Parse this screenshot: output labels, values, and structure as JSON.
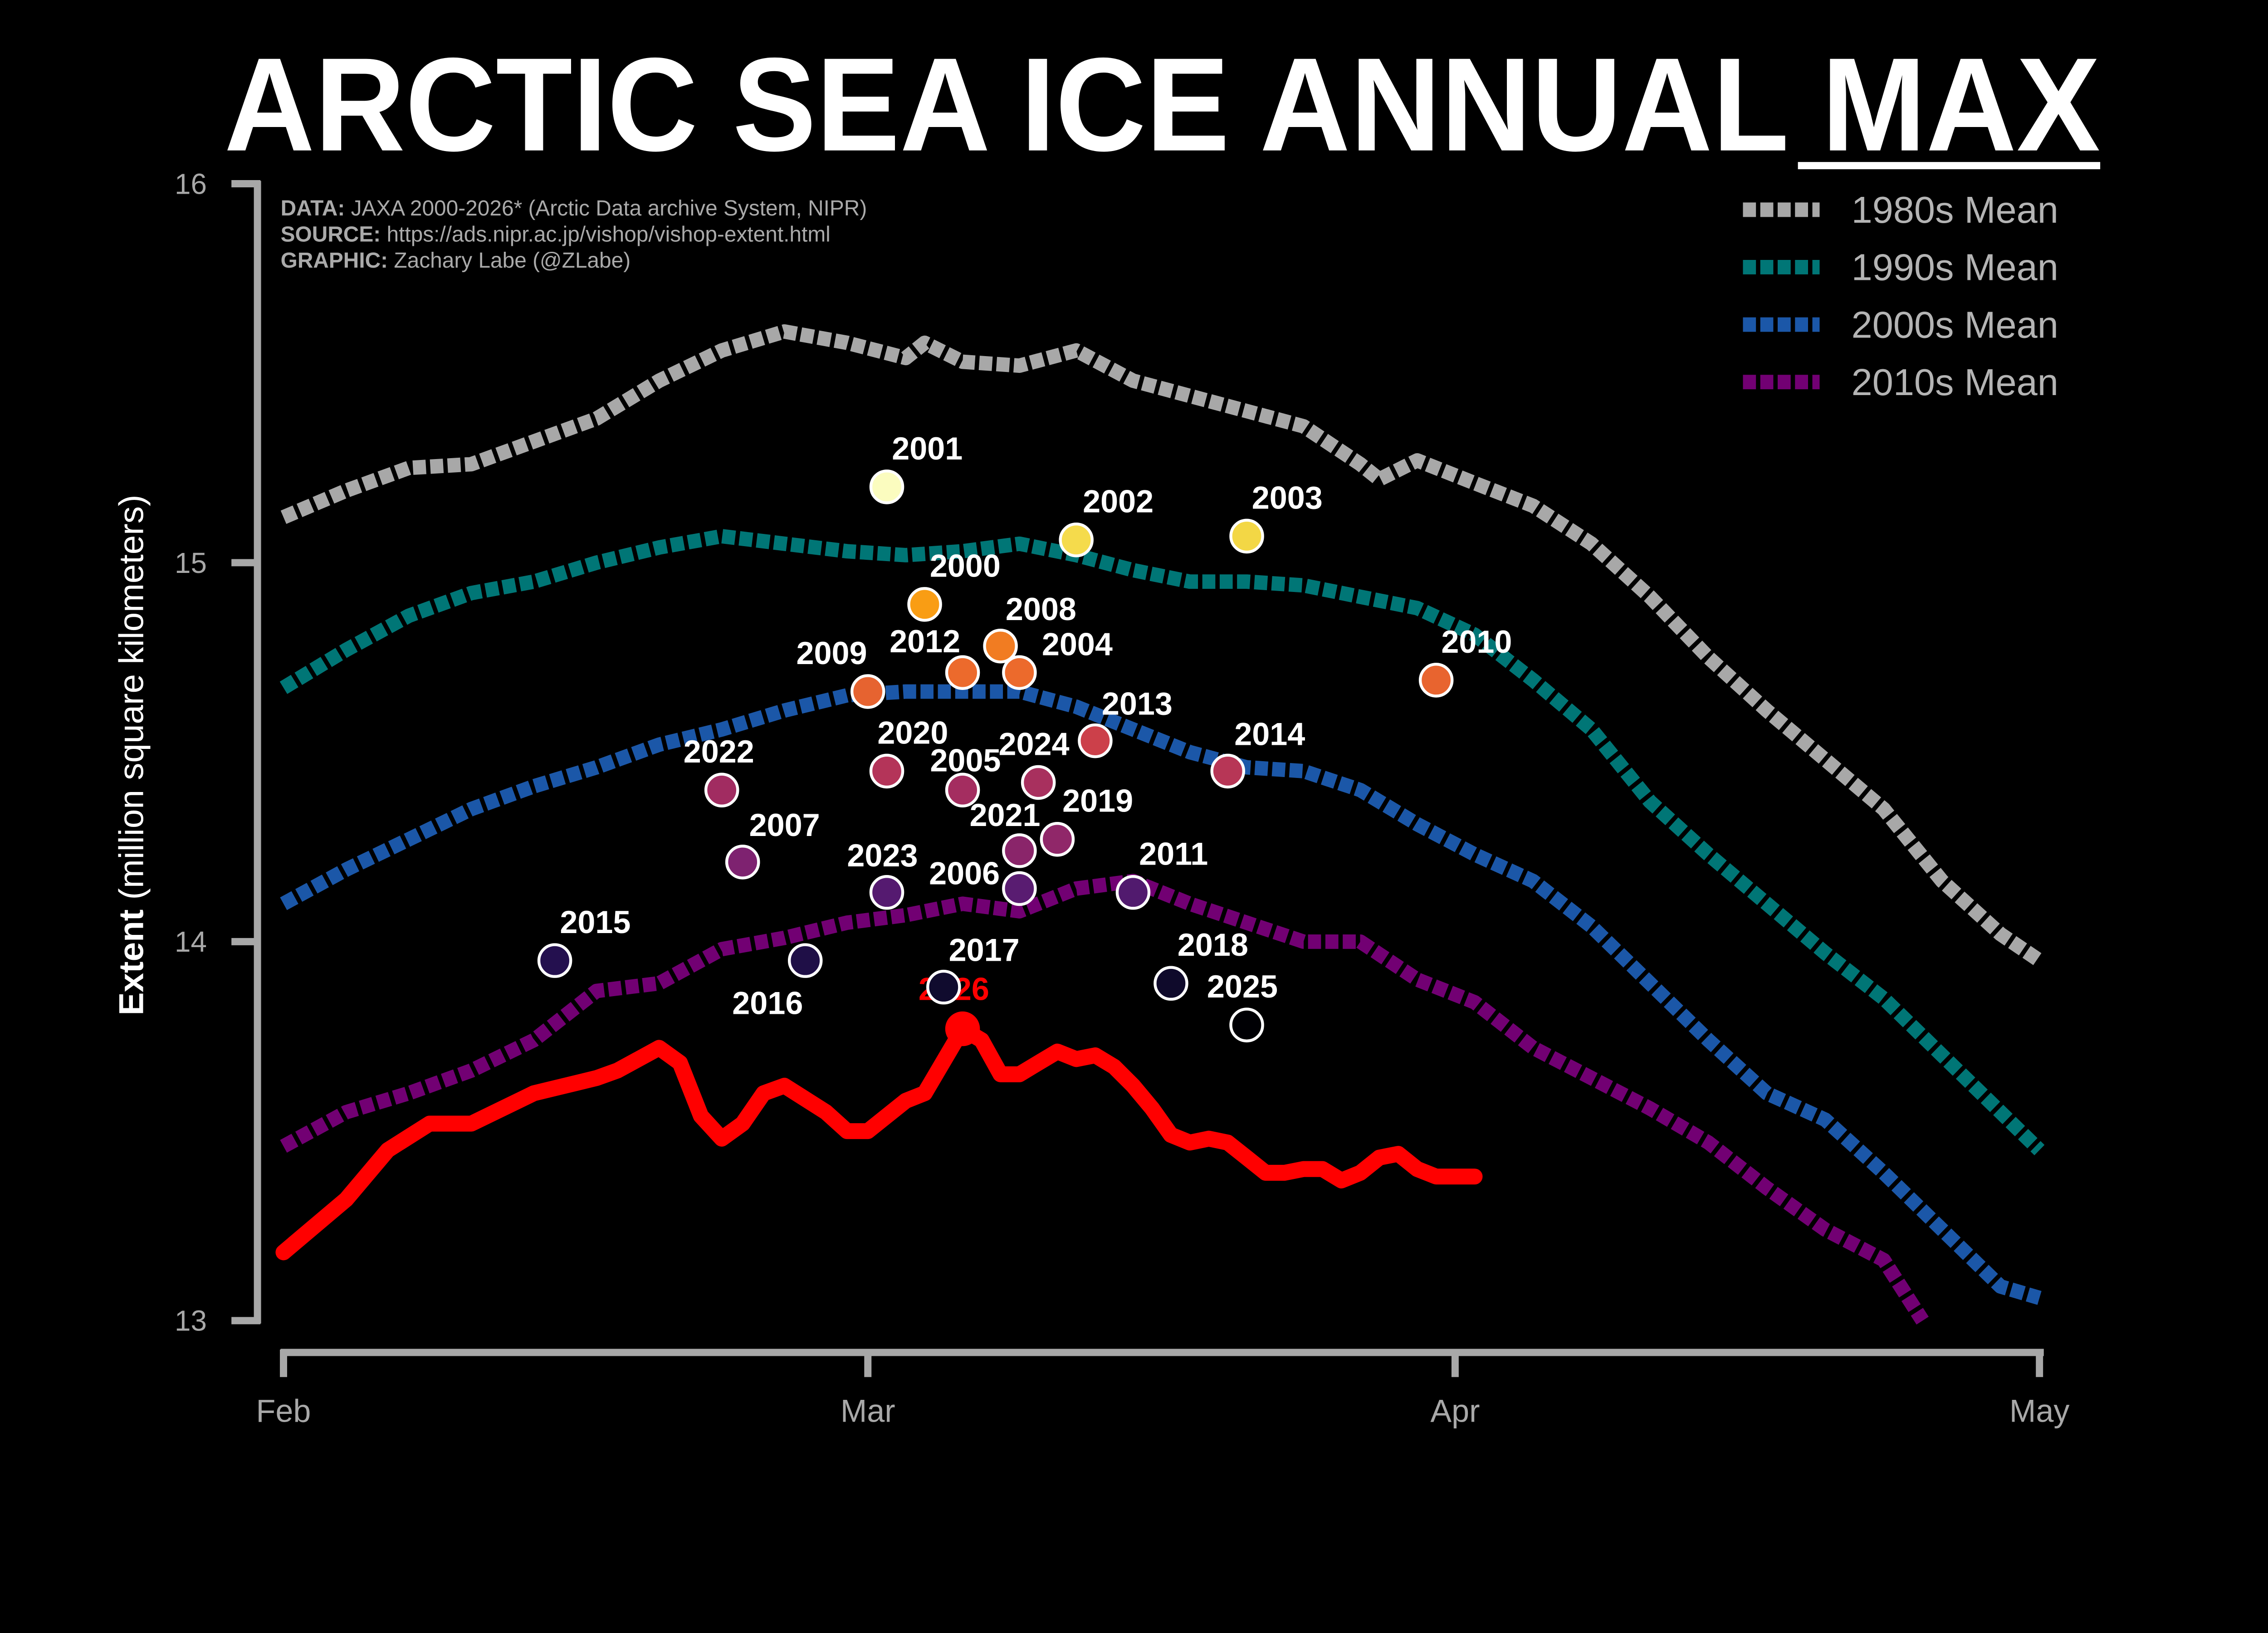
{
  "chart_data": {
    "type": "line",
    "title_main": "ARCTIC SEA ICE ANNUAL ",
    "title_underlined": "MAX",
    "ylabel_bold": "Extent",
    "ylabel_rest": " (million square kilometers)",
    "xlabel": "",
    "ylim": [
      13,
      16
    ],
    "yticks": [
      "13",
      "14",
      "15",
      "16"
    ],
    "xticks": [
      {
        "label": "Feb",
        "date": "02-01"
      },
      {
        "label": "Mar",
        "date": "03-01"
      },
      {
        "label": "Apr",
        "date": "04-01"
      },
      {
        "label": "May",
        "date": "05-01"
      }
    ],
    "grid": false,
    "legend_position": "top-right",
    "credits": [
      {
        "bold": "DATA:",
        "text": " JAXA 2000-2026* (Arctic Data archive System, NIPR)"
      },
      {
        "bold": "SOURCE:",
        "text": " https://ads.nipr.ac.jp/vishop/vishop-extent.html"
      },
      {
        "bold": "GRAPHIC:",
        "text": " Zachary Labe (@ZLabe)"
      }
    ],
    "series": [
      {
        "name": "1980s Mean",
        "color": "#a8a8a8",
        "style": "dashed",
        "x": [
          "02-01",
          "02-04",
          "02-07",
          "02-10",
          "02-13",
          "02-16",
          "02-19",
          "02-22",
          "02-25",
          "02-28",
          "03-03",
          "03-04",
          "03-06",
          "03-09",
          "03-12",
          "03-15",
          "03-18",
          "03-21",
          "03-24",
          "03-27",
          "03-28",
          "03-30",
          "04-02",
          "04-05",
          "04-08",
          "04-11",
          "04-14",
          "04-17",
          "04-20",
          "04-23",
          "04-26",
          "04-29",
          "05-01"
        ],
        "y": [
          15.12,
          15.19,
          15.25,
          15.26,
          15.32,
          15.38,
          15.48,
          15.56,
          15.61,
          15.58,
          15.54,
          15.58,
          15.53,
          15.52,
          15.56,
          15.48,
          15.44,
          15.4,
          15.36,
          15.26,
          15.22,
          15.27,
          15.21,
          15.15,
          15.05,
          14.91,
          14.75,
          14.61,
          14.48,
          14.35,
          14.16,
          14.02,
          13.95
        ]
      },
      {
        "name": "1990s Mean",
        "color": "#007676",
        "style": "dashed",
        "x": [
          "02-01",
          "02-04",
          "02-07",
          "02-10",
          "02-13",
          "02-16",
          "02-19",
          "02-22",
          "02-25",
          "02-28",
          "03-03",
          "03-06",
          "03-09",
          "03-12",
          "03-15",
          "03-18",
          "03-21",
          "03-24",
          "03-27",
          "03-30",
          "04-02",
          "04-05",
          "04-08",
          "04-11",
          "04-14",
          "04-17",
          "04-20",
          "04-23",
          "04-26",
          "04-29",
          "05-01"
        ],
        "y": [
          14.67,
          14.77,
          14.86,
          14.92,
          14.95,
          15.0,
          15.04,
          15.07,
          15.05,
          15.03,
          15.02,
          15.03,
          15.05,
          15.02,
          14.98,
          14.95,
          14.95,
          14.94,
          14.91,
          14.88,
          14.81,
          14.69,
          14.56,
          14.37,
          14.23,
          14.1,
          13.97,
          13.85,
          13.7,
          13.55,
          13.45
        ]
      },
      {
        "name": "2000s Mean",
        "color": "#1b57a8",
        "style": "dashed",
        "x": [
          "02-01",
          "02-04",
          "02-07",
          "02-10",
          "02-13",
          "02-16",
          "02-19",
          "02-22",
          "02-25",
          "02-28",
          "03-03",
          "03-06",
          "03-09",
          "03-12",
          "03-15",
          "03-18",
          "03-21",
          "03-24",
          "03-27",
          "03-30",
          "04-02",
          "04-05",
          "04-08",
          "04-11",
          "04-14",
          "04-17",
          "04-20",
          "04-23",
          "04-26",
          "04-29",
          "05-01"
        ],
        "y": [
          14.1,
          14.19,
          14.27,
          14.35,
          14.41,
          14.46,
          14.52,
          14.56,
          14.61,
          14.65,
          14.66,
          14.66,
          14.66,
          14.62,
          14.56,
          14.5,
          14.46,
          14.45,
          14.4,
          14.31,
          14.23,
          14.16,
          14.04,
          13.89,
          13.74,
          13.6,
          13.53,
          13.39,
          13.24,
          13.09,
          13.06
        ]
      },
      {
        "name": "2010s Mean",
        "color": "#720073",
        "style": "dashed",
        "x": [
          "02-01",
          "02-04",
          "02-07",
          "02-10",
          "02-13",
          "02-16",
          "02-19",
          "02-22",
          "02-25",
          "02-28",
          "03-03",
          "03-06",
          "03-09",
          "03-12",
          "03-15",
          "03-18",
          "03-21",
          "03-24",
          "03-27",
          "03-30",
          "04-02",
          "04-05",
          "04-08",
          "04-11",
          "04-14",
          "04-17",
          "04-20",
          "04-23",
          "04-25"
        ],
        "y": [
          13.46,
          13.55,
          13.6,
          13.66,
          13.74,
          13.87,
          13.89,
          13.98,
          14.01,
          14.05,
          14.07,
          14.1,
          14.08,
          14.14,
          14.16,
          14.1,
          14.05,
          14.0,
          14.0,
          13.9,
          13.84,
          13.72,
          13.64,
          13.56,
          13.47,
          13.35,
          13.24,
          13.16,
          13.0
        ]
      },
      {
        "name": "2026",
        "color": "#ff0000",
        "style": "solid",
        "x": [
          "02-01",
          "02-04",
          "02-06",
          "02-08",
          "02-10",
          "02-13",
          "02-16",
          "02-17",
          "02-19",
          "02-20",
          "02-21",
          "02-22",
          "02-23",
          "02-24",
          "02-25",
          "02-27",
          "02-28",
          "03-01",
          "03-03",
          "03-04",
          "03-06",
          "03-07",
          "03-08",
          "03-09",
          "03-10",
          "03-11",
          "03-12",
          "03-13",
          "03-14",
          "03-15",
          "03-16",
          "03-17",
          "03-18",
          "03-19",
          "03-20",
          "03-21",
          "03-22",
          "03-23",
          "03-24",
          "03-25",
          "03-26",
          "03-27",
          "03-28",
          "03-29",
          "03-30",
          "03-31",
          "04-01",
          "04-02"
        ],
        "y": [
          13.18,
          13.32,
          13.45,
          13.52,
          13.52,
          13.6,
          13.64,
          13.66,
          13.72,
          13.68,
          13.54,
          13.48,
          13.52,
          13.6,
          13.62,
          13.55,
          13.5,
          13.5,
          13.58,
          13.6,
          13.77,
          13.74,
          13.65,
          13.65,
          13.68,
          13.71,
          13.69,
          13.7,
          13.67,
          13.62,
          13.56,
          13.49,
          13.47,
          13.48,
          13.47,
          13.43,
          13.39,
          13.39,
          13.4,
          13.4,
          13.37,
          13.39,
          13.43,
          13.44,
          13.4,
          13.38,
          13.38,
          13.38
        ]
      }
    ],
    "current_max": {
      "label": "2026",
      "date": "03-06",
      "value": 13.77,
      "color": "#ff0000"
    },
    "annual_maxima": [
      {
        "year": "2001",
        "date": "03-02",
        "value": 15.2,
        "color": "#fbfcbf"
      },
      {
        "year": "2003",
        "date": "03-21",
        "value": 15.07,
        "color": "#f3d745"
      },
      {
        "year": "2002",
        "date": "03-12",
        "value": 15.06,
        "color": "#f5db4c"
      },
      {
        "year": "2000",
        "date": "03-04",
        "value": 14.89,
        "color": "#f99d14"
      },
      {
        "year": "2008",
        "date": "03-08",
        "value": 14.78,
        "color": "#f17c22"
      },
      {
        "year": "2012",
        "date": "03-06",
        "value": 14.71,
        "color": "#ec6a2c"
      },
      {
        "year": "2004",
        "date": "03-09",
        "value": 14.71,
        "color": "#ec6a2c"
      },
      {
        "year": "2010",
        "date": "03-31",
        "value": 14.69,
        "color": "#e8642f"
      },
      {
        "year": "2009",
        "date": "03-01",
        "value": 14.66,
        "color": "#e66330"
      },
      {
        "year": "2013",
        "date": "03-13",
        "value": 14.53,
        "color": "#cc404a"
      },
      {
        "year": "2014",
        "date": "03-20",
        "value": 14.45,
        "color": "#b73656"
      },
      {
        "year": "2020",
        "date": "03-02",
        "value": 14.45,
        "color": "#b43459"
      },
      {
        "year": "2024",
        "date": "03-10",
        "value": 14.42,
        "color": "#a8305e"
      },
      {
        "year": "2005",
        "date": "03-06",
        "value": 14.4,
        "color": "#a42d60"
      },
      {
        "year": "2022",
        "date": "02-22",
        "value": 14.4,
        "color": "#a12c61"
      },
      {
        "year": "2019",
        "date": "03-11",
        "value": 14.27,
        "color": "#902769"
      },
      {
        "year": "2021",
        "date": "03-09",
        "value": 14.24,
        "color": "#8a256a"
      },
      {
        "year": "2007",
        "date": "02-23",
        "value": 14.21,
        "color": "#7e2270"
      },
      {
        "year": "2006",
        "date": "03-09",
        "value": 14.14,
        "color": "#591c71"
      },
      {
        "year": "2023",
        "date": "03-02",
        "value": 14.13,
        "color": "#551a70"
      },
      {
        "year": "2011",
        "date": "03-15",
        "value": 14.13,
        "color": "#511a6e"
      },
      {
        "year": "2015",
        "date": "02-14",
        "value": 13.95,
        "color": "#24104f"
      },
      {
        "year": "2016",
        "date": "02-26",
        "value": 13.95,
        "color": "#1f0f47"
      },
      {
        "year": "2018",
        "date": "03-17",
        "value": 13.89,
        "color": "#0f0a2b"
      },
      {
        "year": "2017",
        "date": "03-05",
        "value": 13.88,
        "color": "#100b2e"
      },
      {
        "year": "2025",
        "date": "03-21",
        "value": 13.78,
        "color": "#000004"
      }
    ]
  }
}
